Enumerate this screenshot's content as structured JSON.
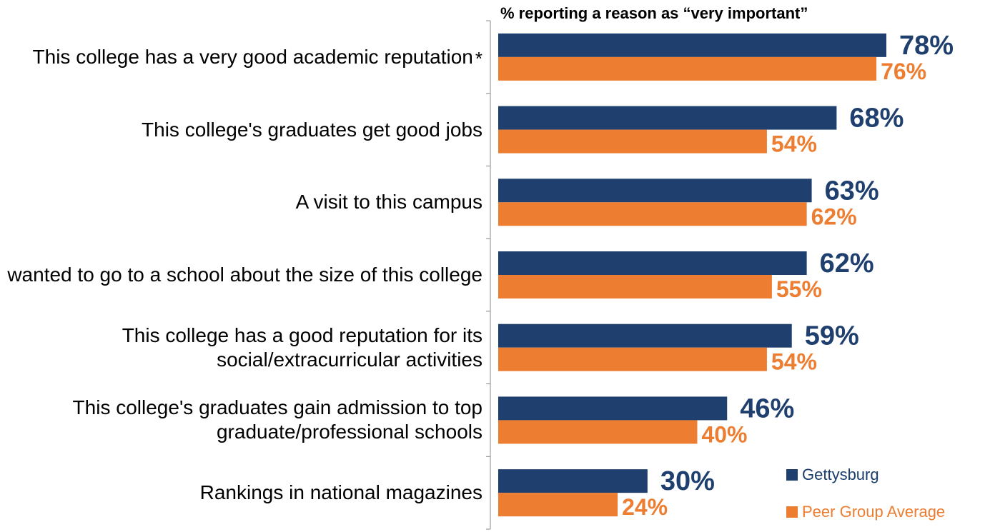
{
  "chart_data": {
    "type": "bar",
    "orientation": "horizontal",
    "title": "% reporting a reason as “very important”",
    "categories": [
      "This college has a very good academic reputation",
      "This college's graduates get good jobs",
      "A visit to this campus",
      "I wanted to go to a school about the size of this college",
      "This college has a good reputation for its social/extracurricular activities",
      "This college's graduates gain admission to top graduate/professional schools",
      "Rankings in national magazines"
    ],
    "category_note": {
      "index": 0,
      "mark": "*"
    },
    "series": [
      {
        "name": "Gettysburg",
        "color": "#1f3f6e",
        "values": [
          78,
          68,
          63,
          62,
          59,
          46,
          30
        ],
        "labels": [
          "78%",
          "68%",
          "63%",
          "62%",
          "59%",
          "46%",
          "30%"
        ]
      },
      {
        "name": "Peer Group Average",
        "color": "#ed7d31",
        "values": [
          76,
          54,
          62,
          55,
          54,
          40,
          24
        ],
        "labels": [
          "76%",
          "54%",
          "62%",
          "55%",
          "54%",
          "40%",
          "24%"
        ]
      }
    ],
    "xlim": [
      0,
      100
    ],
    "grid": false,
    "legend": "bottom-right"
  }
}
